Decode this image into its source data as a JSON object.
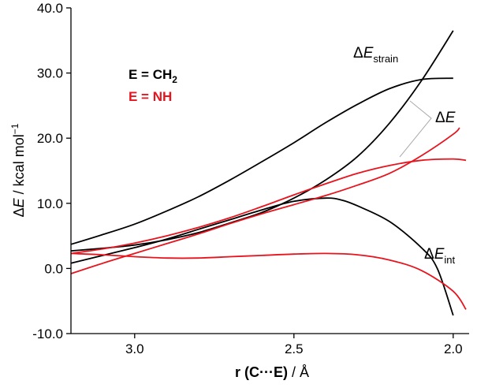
{
  "chart_data": {
    "type": "line",
    "title": "",
    "xlabel": {
      "main": "r (C···E)",
      "unit": "Å",
      "separator": "/"
    },
    "ylabel": {
      "delta": "Δ",
      "var": "E",
      "sep": "/",
      "unit": "kcal mol",
      "sup": "−1"
    },
    "xlim": [
      3.2,
      1.95
    ],
    "ylim": [
      -10,
      40
    ],
    "x_reversed": true,
    "x_ticks": [
      3.0,
      2.5,
      2.0
    ],
    "x_tick_labels": [
      "3.0",
      "2.5",
      "2.0"
    ],
    "y_ticks": [
      -10,
      0,
      10,
      20,
      30,
      40
    ],
    "y_tick_labels": [
      "-10.0",
      "0.0",
      "10.0",
      "20.0",
      "30.0",
      "40.0"
    ],
    "legend": [
      {
        "label_main": "E = CH",
        "label_sub": "2",
        "color": "#000000"
      },
      {
        "label_main": "E = NH",
        "label_sub": "",
        "color": "#e8131d"
      }
    ],
    "annotations": [
      {
        "delta": "Δ",
        "var": "E",
        "sub": "strain"
      },
      {
        "delta": "Δ",
        "var": "E",
        "sub": ""
      },
      {
        "delta": "Δ",
        "var": "E",
        "sub": "int"
      }
    ],
    "series": [
      {
        "name": "CH2 ΔE_strain",
        "color": "#000000",
        "x": [
          3.2,
          3.1,
          3.0,
          2.9,
          2.8,
          2.7,
          2.6,
          2.5,
          2.4,
          2.3,
          2.2,
          2.1,
          2.0
        ],
        "values": [
          2.7,
          3.1,
          3.6,
          4.4,
          5.5,
          7.0,
          8.6,
          10.8,
          13.6,
          17.2,
          22.3,
          28.8,
          36.5
        ]
      },
      {
        "name": "CH2 ΔE",
        "color": "#000000",
        "x": [
          3.2,
          3.1,
          3.0,
          2.9,
          2.8,
          2.7,
          2.6,
          2.5,
          2.4,
          2.3,
          2.2,
          2.1,
          2.0
        ],
        "values": [
          3.7,
          5.2,
          6.8,
          8.8,
          11.0,
          13.6,
          16.4,
          19.3,
          22.4,
          25.2,
          27.6,
          29.0,
          29.2
        ]
      },
      {
        "name": "CH2 ΔE_int",
        "color": "#000000",
        "x": [
          3.2,
          3.1,
          3.0,
          2.9,
          2.8,
          2.7,
          2.6,
          2.5,
          2.4,
          2.35,
          2.3,
          2.2,
          2.1,
          2.05,
          2.0
        ],
        "values": [
          0.8,
          2.0,
          3.2,
          4.5,
          6.0,
          7.5,
          9.0,
          10.3,
          10.8,
          10.5,
          9.6,
          7.2,
          3.2,
          0.0,
          -7.2
        ]
      },
      {
        "name": "NH ΔE_strain",
        "color": "#e8131d",
        "x": [
          3.2,
          3.1,
          3.0,
          2.9,
          2.8,
          2.7,
          2.6,
          2.5,
          2.4,
          2.3,
          2.2,
          2.1,
          2.0,
          1.98
        ],
        "values": [
          -0.8,
          0.8,
          2.3,
          3.8,
          5.3,
          6.9,
          8.4,
          9.8,
          11.2,
          12.8,
          14.6,
          17.3,
          20.6,
          21.6
        ]
      },
      {
        "name": "NH ΔE",
        "color": "#e8131d",
        "x": [
          3.2,
          3.1,
          3.0,
          2.9,
          2.8,
          2.7,
          2.6,
          2.5,
          2.4,
          2.3,
          2.2,
          2.1,
          2.0,
          1.96
        ],
        "values": [
          2.3,
          3.0,
          3.9,
          5.0,
          6.3,
          7.8,
          9.5,
          11.3,
          13.0,
          14.6,
          15.8,
          16.6,
          16.8,
          16.6
        ]
      },
      {
        "name": "NH ΔE_int",
        "color": "#e8131d",
        "x": [
          3.2,
          3.1,
          3.0,
          2.9,
          2.8,
          2.7,
          2.6,
          2.5,
          2.4,
          2.3,
          2.2,
          2.1,
          2.0,
          1.96
        ],
        "values": [
          2.3,
          2.1,
          1.8,
          1.6,
          1.6,
          1.8,
          2.0,
          2.2,
          2.3,
          2.1,
          1.3,
          -0.3,
          -3.5,
          -6.3
        ]
      }
    ]
  }
}
